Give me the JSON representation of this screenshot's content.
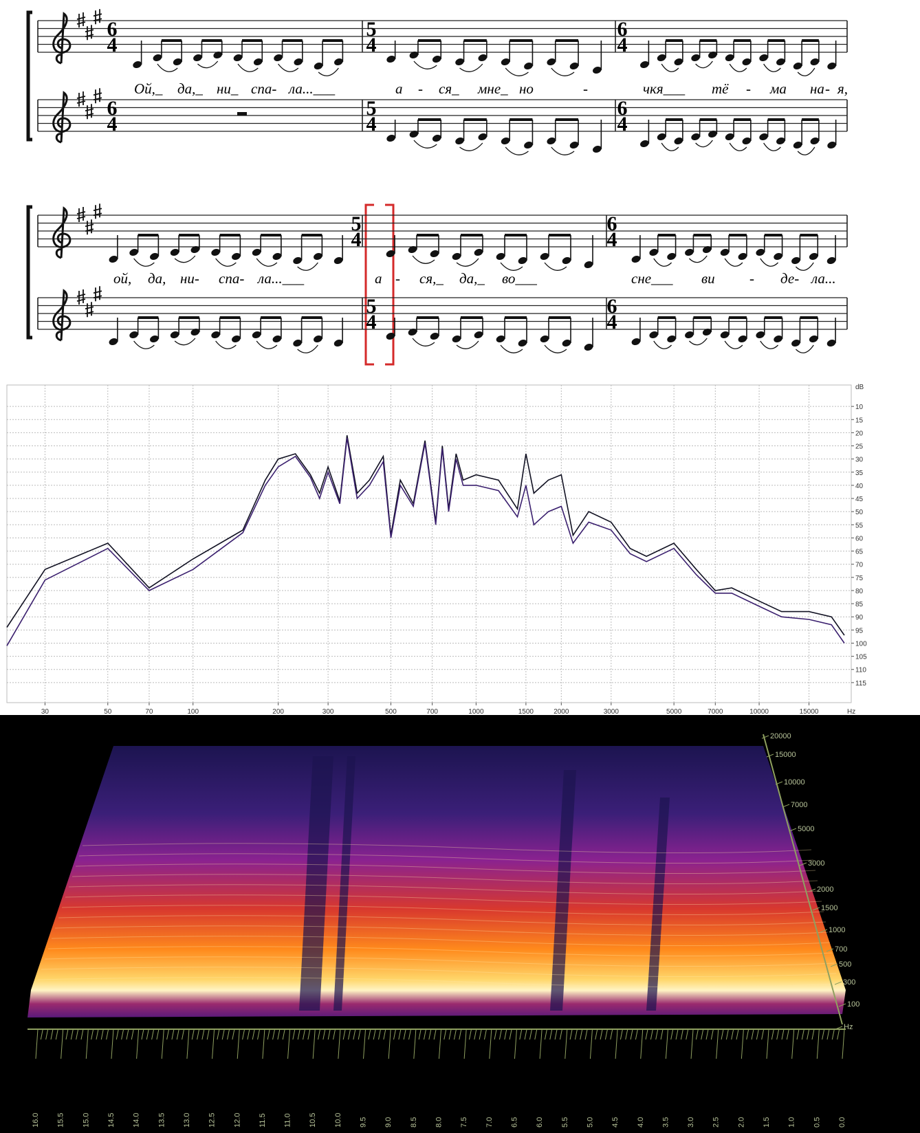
{
  "score": {
    "systems": [
      {
        "staves": [
          {
            "time_signatures": [
              {
                "num": "6",
                "den": "4"
              },
              {
                "num": "5",
                "den": "4"
              },
              {
                "num": "6",
                "den": "4"
              }
            ]
          },
          {
            "time_signatures": [
              {
                "num": "6",
                "den": "4"
              },
              {
                "num": "5",
                "den": "4"
              },
              {
                "num": "6",
                "den": "4"
              }
            ]
          }
        ],
        "lyrics": [
          "Ой,_",
          "да,_",
          "ни_",
          "спа-",
          "ла...___",
          "а",
          "-",
          "ся_",
          "мне_",
          "но",
          "-",
          "чкя___",
          "тё",
          "-",
          "ма",
          "на",
          "-",
          "я,"
        ]
      },
      {
        "staves": [
          {
            "time_signatures": [
              {
                "num": "5",
                "den": "4"
              },
              {
                "num": "6",
                "den": "4"
              }
            ]
          },
          {
            "time_signatures": [
              {
                "num": "5",
                "den": "4"
              },
              {
                "num": "6",
                "den": "4"
              }
            ]
          }
        ],
        "lyrics": [
          "ой,",
          "да,",
          "ни-",
          "спа-",
          "ла...___",
          "а",
          "-",
          "ся,_",
          "да,_",
          "во___",
          "сне___",
          "ви",
          "-",
          "де-",
          "ла..."
        ]
      }
    ]
  },
  "chart_data": {
    "type": "line",
    "x_scale": "log",
    "y_reversed": true,
    "grid": true,
    "x_unit": "Hz",
    "y_unit": "dB",
    "x": [
      22,
      30,
      50,
      70,
      100,
      150,
      180,
      200,
      230,
      260,
      280,
      300,
      330,
      350,
      380,
      420,
      470,
      500,
      540,
      600,
      660,
      720,
      760,
      800,
      850,
      900,
      1000,
      1200,
      1400,
      1500,
      1600,
      1800,
      2000,
      2200,
      2500,
      3000,
      3500,
      4000,
      5000,
      6000,
      7000,
      8000,
      10000,
      12000,
      15000,
      18000,
      20000
    ],
    "series": [
      {
        "color": "#111122",
        "values": [
          94,
          72,
          62,
          79,
          68,
          57,
          38,
          30,
          28,
          36,
          43,
          33,
          46,
          21,
          43,
          38,
          29,
          59,
          38,
          47,
          23,
          54,
          25,
          49,
          28,
          38,
          36,
          38,
          49,
          28,
          43,
          38,
          36,
          59,
          50,
          54,
          64,
          67,
          62,
          72,
          80,
          79,
          84,
          88,
          88,
          90,
          97
        ]
      },
      {
        "color": "#3a1f6e",
        "values": [
          101,
          76,
          64,
          80,
          72,
          58,
          40,
          33,
          29,
          37,
          45,
          35,
          47,
          22,
          45,
          40,
          31,
          60,
          40,
          48,
          24,
          55,
          26,
          50,
          30,
          40,
          40,
          42,
          52,
          40,
          55,
          50,
          48,
          62,
          54,
          57,
          66,
          69,
          64,
          74,
          81,
          81,
          86,
          90,
          91,
          93,
          100
        ]
      }
    ],
    "xlim": [
      22,
      20000
    ],
    "xticks": [
      30,
      50,
      70,
      100,
      200,
      300,
      500,
      700,
      1000,
      1500,
      2000,
      3000,
      5000,
      7000,
      10000,
      15000
    ],
    "ylim": [
      5,
      120
    ],
    "yticks": [
      10,
      15,
      20,
      25,
      30,
      35,
      40,
      45,
      50,
      55,
      60,
      65,
      70,
      75,
      80,
      85,
      90,
      95,
      100,
      105,
      110,
      115
    ]
  },
  "spectrogram": {
    "freq_labels": [
      "20000",
      "15000",
      "10000",
      "7000",
      "5000",
      "3000",
      "2000",
      "1500",
      "1000",
      "700",
      "500",
      "300",
      "100",
      "Hz"
    ],
    "time_labels": [
      "16.0",
      "15.5",
      "15.0",
      "14.5",
      "14.0",
      "13.5",
      "13.0",
      "12.5",
      "12.0",
      "11.5",
      "11.0",
      "10.5",
      "10.0",
      "9.5",
      "9.0",
      "8.5",
      "8.0",
      "7.5",
      "7.0",
      "6.5",
      "6.0",
      "5.5",
      "5.0",
      "4.5",
      "4.0",
      "3.5",
      "3.0",
      "2.5",
      "2.0",
      "1.5",
      "1.0",
      "0.5",
      "0.0"
    ]
  }
}
